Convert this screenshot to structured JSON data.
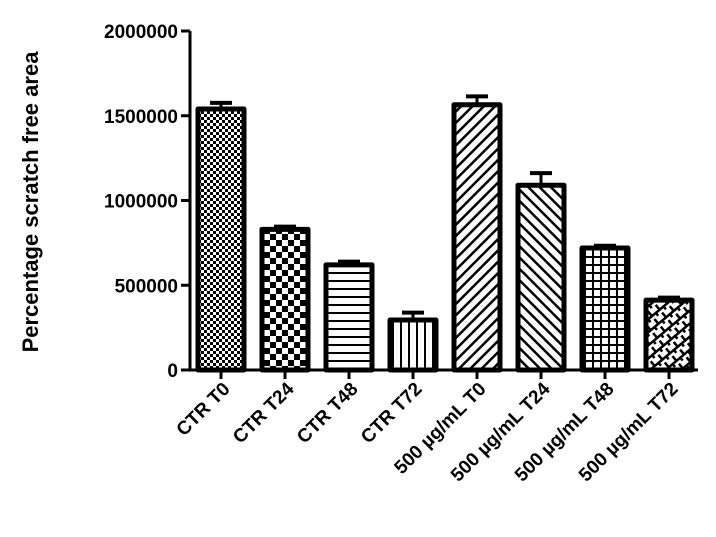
{
  "chart_data": {
    "type": "bar",
    "title": "",
    "xlabel": "",
    "ylabel": "Percentage scratch free area",
    "ylim": [
      0,
      2000000
    ],
    "yticks": [
      0,
      500000,
      1000000,
      1500000,
      2000000
    ],
    "ytick_labels": [
      "0",
      "500000",
      "1000000",
      "1500000",
      "2000000"
    ],
    "grid": false,
    "legend": null,
    "categories": [
      "CTR T0",
      "CTR T24",
      "CTR T48",
      "CTR T72",
      "500 µg/mL T0",
      "500 µg/mL T24",
      "500 µg/mL T48",
      "500 µg/mL T72"
    ],
    "values": [
      1540000,
      830000,
      620000,
      295000,
      1565000,
      1090000,
      720000,
      412000
    ],
    "error_upper": [
      45000,
      25000,
      28000,
      52000,
      58000,
      80000,
      22000,
      24000
    ],
    "patterns": [
      "fine-checker",
      "coarse-checker",
      "horizontal-lines",
      "vertical-lines",
      "diagonal-up",
      "diagonal-down",
      "grid",
      "brick-diagonal"
    ]
  }
}
